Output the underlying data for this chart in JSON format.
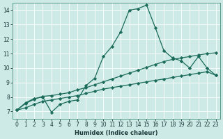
{
  "title": "",
  "xlabel": "Humidex (Indice chaleur)",
  "ylabel": "",
  "xlim": [
    -0.5,
    23.5
  ],
  "ylim": [
    6.5,
    14.5
  ],
  "xticks": [
    0,
    1,
    2,
    3,
    4,
    5,
    6,
    7,
    8,
    9,
    10,
    11,
    12,
    13,
    14,
    15,
    16,
    17,
    18,
    19,
    20,
    21,
    22,
    23
  ],
  "yticks": [
    7,
    8,
    9,
    10,
    11,
    12,
    13,
    14
  ],
  "bg_color": "#ceeae6",
  "line_color": "#1a6b5a",
  "grid_color": "#ffffff",
  "line1_x": [
    0,
    1,
    2,
    3,
    4,
    5,
    6,
    7,
    8,
    9,
    10,
    11,
    12,
    13,
    14,
    15,
    16,
    17,
    18,
    19,
    20,
    21,
    22,
    23
  ],
  "line1_y": [
    7.1,
    7.6,
    7.9,
    8.0,
    6.95,
    7.5,
    7.7,
    7.8,
    8.8,
    9.3,
    10.8,
    11.5,
    12.5,
    14.0,
    14.1,
    14.35,
    12.8,
    11.2,
    10.7,
    10.5,
    10.0,
    10.8,
    10.0,
    9.5
  ],
  "line2_x": [
    0,
    1,
    2,
    3,
    4,
    5,
    6,
    7,
    8,
    9,
    10,
    11,
    12,
    13,
    14,
    15,
    16,
    17,
    18,
    19,
    20,
    21,
    22,
    23
  ],
  "line2_y": [
    7.1,
    7.55,
    7.85,
    8.05,
    8.1,
    8.2,
    8.3,
    8.5,
    8.65,
    8.85,
    9.05,
    9.25,
    9.45,
    9.65,
    9.85,
    10.05,
    10.25,
    10.45,
    10.6,
    10.7,
    10.8,
    10.9,
    11.0,
    11.05
  ],
  "line3_x": [
    0,
    1,
    2,
    3,
    4,
    5,
    6,
    7,
    8,
    9,
    10,
    11,
    12,
    13,
    14,
    15,
    16,
    17,
    18,
    19,
    20,
    21,
    22,
    23
  ],
  "line3_y": [
    7.1,
    7.25,
    7.5,
    7.7,
    7.8,
    7.9,
    8.0,
    8.1,
    8.25,
    8.4,
    8.55,
    8.65,
    8.75,
    8.85,
    8.95,
    9.05,
    9.15,
    9.25,
    9.35,
    9.45,
    9.55,
    9.65,
    9.75,
    9.5
  ],
  "marker": "D",
  "marker_size": 2.2,
  "linewidth": 0.9,
  "label_fontsize": 6,
  "tick_fontsize": 5.5
}
